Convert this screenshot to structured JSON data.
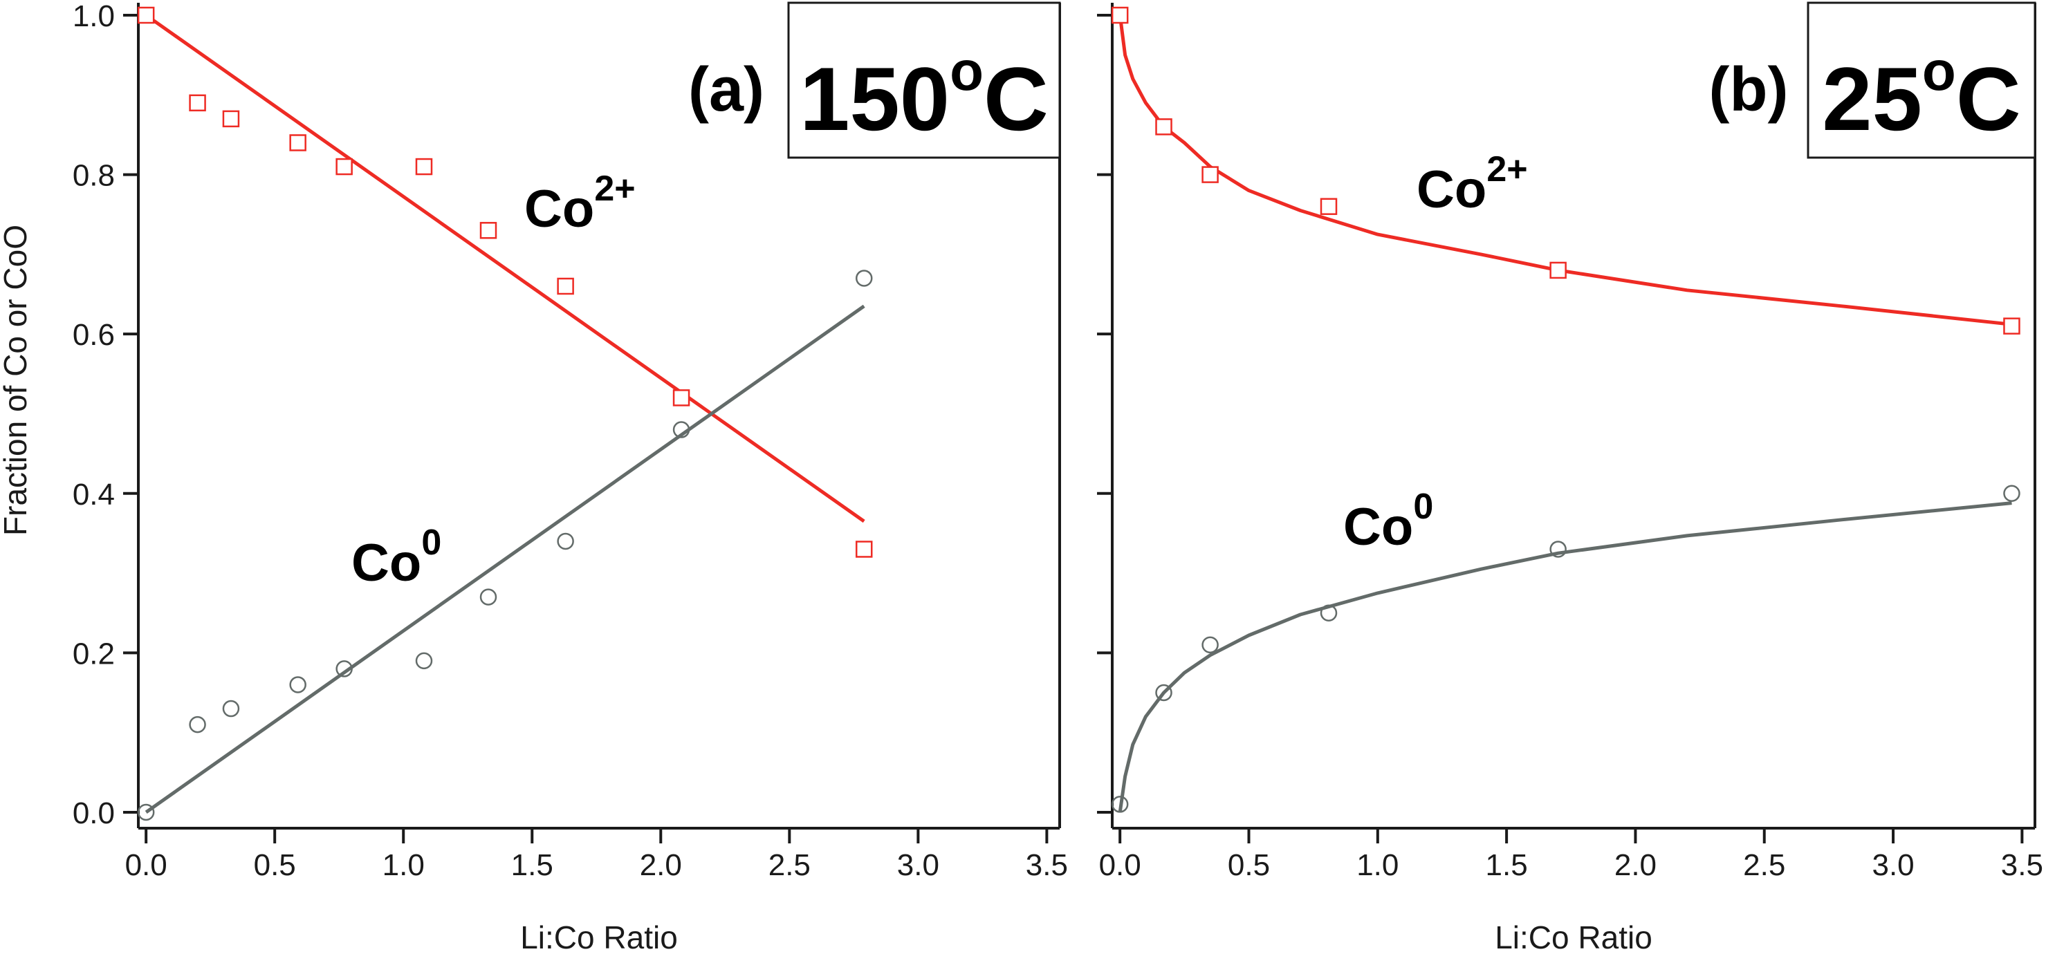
{
  "figure": {
    "ylabel": "Fraction of Co or CoO",
    "colors": {
      "co2": "#ee2b24",
      "co0": "#636b69",
      "axis": "#1a1a1a"
    }
  },
  "chart_data": [
    {
      "type": "scatter",
      "panel_label": "(a)",
      "temperature": {
        "value": "150",
        "superscript": "o",
        "unit": "C"
      },
      "xlabel": "Li:Co Ratio",
      "ylabel": "Fraction of Co or CoO",
      "xlim": [
        -0.03,
        3.55
      ],
      "ylim": [
        -0.02,
        1.0
      ],
      "xticks": [
        "0.0",
        "0.5",
        "1.0",
        "1.5",
        "2.0",
        "2.5",
        "3.0",
        "3.5"
      ],
      "yticks": [
        "0.0",
        "0.2",
        "0.4",
        "0.6",
        "0.8",
        "1.0"
      ],
      "grid": false,
      "series": [
        {
          "name": "Co",
          "superscript": "2+",
          "marker": "square",
          "color": "#ee2b24",
          "x": [
            0.0,
            0.2,
            0.33,
            0.59,
            0.77,
            1.08,
            1.33,
            1.63,
            2.08,
            2.79
          ],
          "y": [
            1.0,
            0.89,
            0.87,
            0.84,
            0.81,
            0.81,
            0.73,
            0.66,
            0.52,
            0.33
          ],
          "fit": {
            "kind": "linear",
            "x": [
              0.0,
              2.79
            ],
            "y": [
              1.0,
              0.365
            ]
          }
        },
        {
          "name": "Co",
          "superscript": "0",
          "marker": "circle",
          "color": "#636b69",
          "x": [
            0.0,
            0.2,
            0.33,
            0.59,
            0.77,
            1.08,
            1.33,
            1.63,
            2.08,
            2.79
          ],
          "y": [
            0.0,
            0.11,
            0.13,
            0.16,
            0.18,
            0.19,
            0.27,
            0.34,
            0.48,
            0.67
          ],
          "fit": {
            "kind": "linear",
            "x": [
              0.0,
              2.79
            ],
            "y": [
              0.0,
              0.635
            ]
          }
        }
      ]
    },
    {
      "type": "scatter",
      "panel_label": "(b)",
      "temperature": {
        "value": "25",
        "superscript": "o",
        "unit": "C"
      },
      "xlabel": "Li:Co Ratio",
      "ylabel": "",
      "xlim": [
        -0.03,
        3.55
      ],
      "ylim": [
        -0.02,
        1.0
      ],
      "xticks": [
        "0.0",
        "0.5",
        "1.0",
        "1.5",
        "2.0",
        "2.5",
        "3.0",
        "3.5"
      ],
      "yticks": [],
      "grid": false,
      "series": [
        {
          "name": "Co",
          "superscript": "2+",
          "marker": "square",
          "color": "#ee2b24",
          "x": [
            0.0,
            0.17,
            0.35,
            0.81,
            1.7,
            3.46
          ],
          "y": [
            1.0,
            0.86,
            0.8,
            0.76,
            0.68,
            0.61
          ],
          "fit": {
            "kind": "curve",
            "x": [
              0.0,
              0.02,
              0.05,
              0.1,
              0.17,
              0.25,
              0.35,
              0.5,
              0.7,
              1.0,
              1.4,
              1.7,
              2.2,
              2.8,
              3.46
            ],
            "y": [
              1.0,
              0.95,
              0.92,
              0.89,
              0.86,
              0.84,
              0.81,
              0.78,
              0.755,
              0.725,
              0.7,
              0.68,
              0.655,
              0.635,
              0.612
            ]
          }
        },
        {
          "name": "Co",
          "superscript": "0",
          "marker": "circle",
          "color": "#636b69",
          "x": [
            0.0,
            0.17,
            0.35,
            0.81,
            1.7,
            3.46
          ],
          "y": [
            0.01,
            0.15,
            0.21,
            0.25,
            0.33,
            0.4
          ],
          "fit": {
            "kind": "curve",
            "x": [
              0.0,
              0.02,
              0.05,
              0.1,
              0.17,
              0.25,
              0.35,
              0.5,
              0.7,
              1.0,
              1.4,
              1.7,
              2.2,
              2.8,
              3.46
            ],
            "y": [
              0.0,
              0.045,
              0.085,
              0.12,
              0.15,
              0.175,
              0.197,
              0.222,
              0.248,
              0.275,
              0.305,
              0.325,
              0.347,
              0.367,
              0.388
            ]
          }
        }
      ]
    }
  ]
}
